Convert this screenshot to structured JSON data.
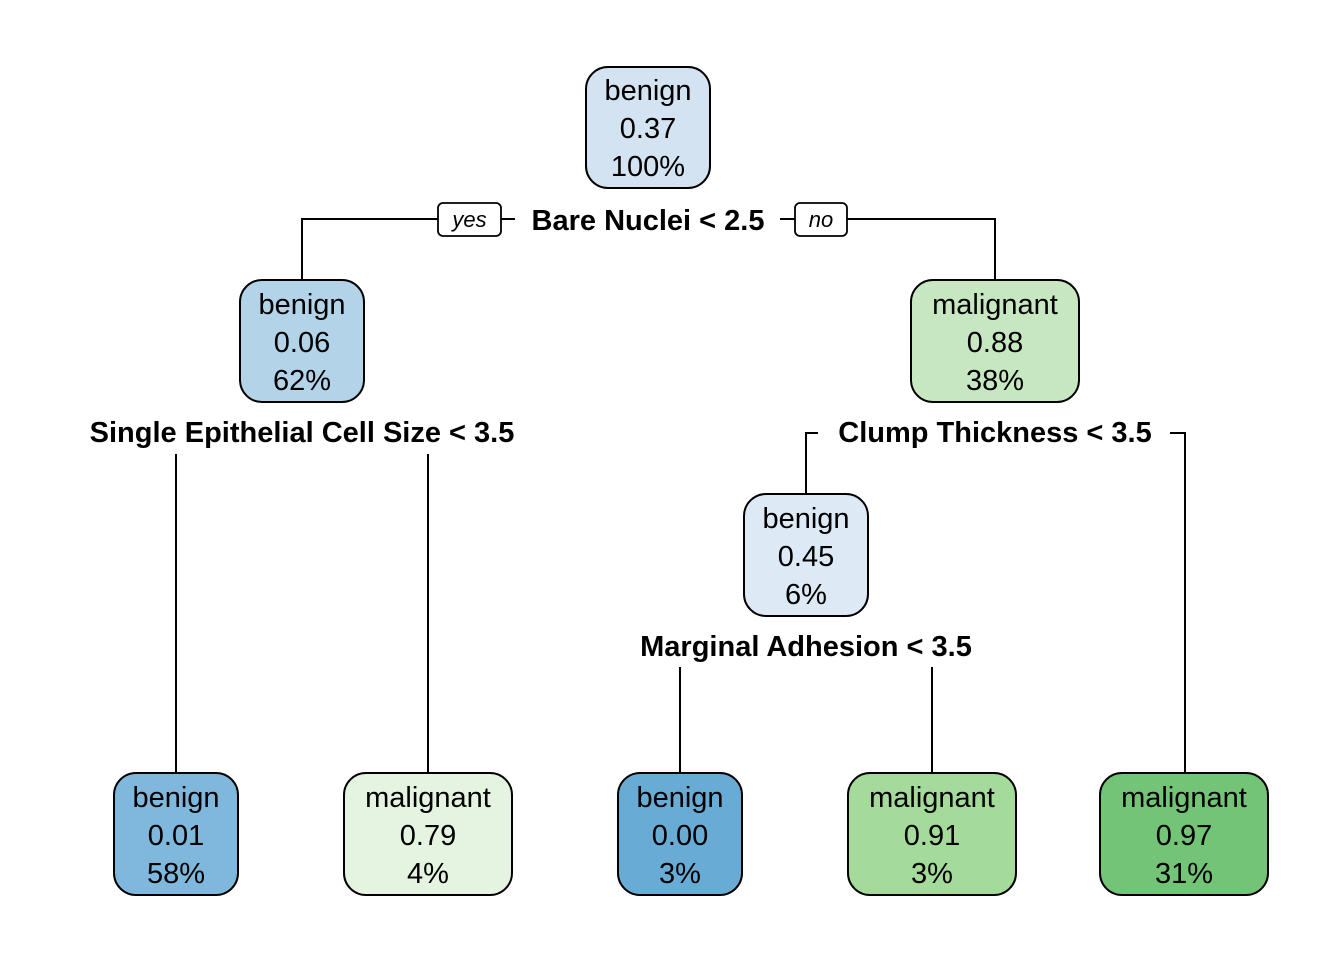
{
  "tree": {
    "root": {
      "class": "benign",
      "prob": "0.37",
      "pct": "100%",
      "fill": "#d4e3f2",
      "split": "Bare Nuclei < 2.5",
      "yes_label": "yes",
      "no_label": "no"
    },
    "left": {
      "class": "benign",
      "prob": "0.06",
      "pct": "62%",
      "fill": "#b2d3e8",
      "split": "Single Epithelial Cell Size < 3.5"
    },
    "right": {
      "class": "malignant",
      "prob": "0.88",
      "pct": "38%",
      "fill": "#c6e7c0",
      "split": "Clump Thickness < 3.5"
    },
    "right_left": {
      "class": "benign",
      "prob": "0.45",
      "pct": "6%",
      "fill": "#dde9f5",
      "split": "Marginal Adhesion < 3.5"
    },
    "leaves": [
      {
        "class": "benign",
        "prob": "0.01",
        "pct": "58%",
        "fill": "#7fb8dc"
      },
      {
        "class": "malignant",
        "prob": "0.79",
        "pct": "4%",
        "fill": "#e5f4e0"
      },
      {
        "class": "benign",
        "prob": "0.00",
        "pct": "3%",
        "fill": "#68acd6"
      },
      {
        "class": "malignant",
        "prob": "0.91",
        "pct": "3%",
        "fill": "#a4da9a"
      },
      {
        "class": "malignant",
        "prob": "0.97",
        "pct": "31%",
        "fill": "#73c477"
      }
    ]
  }
}
